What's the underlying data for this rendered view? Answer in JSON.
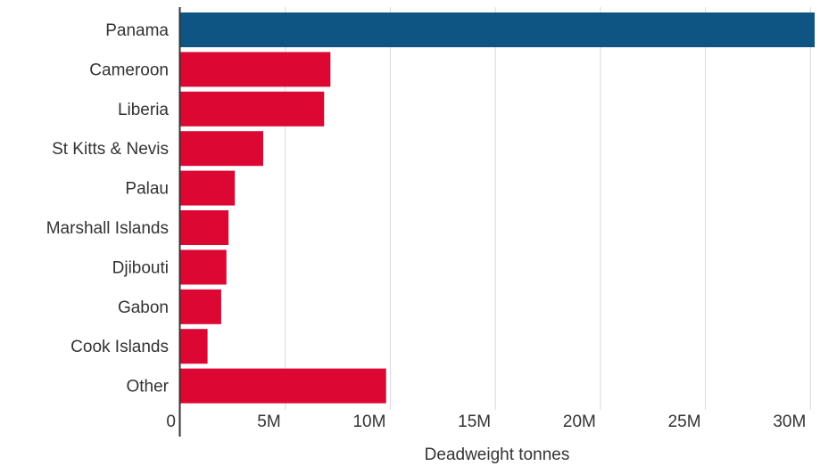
{
  "chart_data": {
    "type": "bar",
    "orientation": "horizontal",
    "title": "",
    "xlabel": "Deadweight tonnes",
    "ylabel": "",
    "categories": [
      "Panama",
      "Cameroon",
      "Liberia",
      "St Kitts & Nevis",
      "Palau",
      "Marshall Islands",
      "Djibouti",
      "Gabon",
      "Cook Islands",
      "Other"
    ],
    "values": [
      30200000,
      7150000,
      6850000,
      3950000,
      2600000,
      2300000,
      2200000,
      1950000,
      1300000,
      9800000
    ],
    "highlight_index": 0,
    "colors": {
      "highlight": "#0e5583",
      "default": "#dc0733",
      "grid": "#d9d9d9",
      "axis": "#333333",
      "text": "#333333"
    },
    "xlim": [
      0,
      30200000
    ],
    "xticks": [
      0,
      5000000,
      10000000,
      15000000,
      20000000,
      25000000,
      30000000
    ],
    "xtick_labels": [
      "0",
      "5M",
      "10M",
      "15M",
      "20M",
      "25M",
      "30M"
    ],
    "grid": true,
    "legend": "none"
  }
}
